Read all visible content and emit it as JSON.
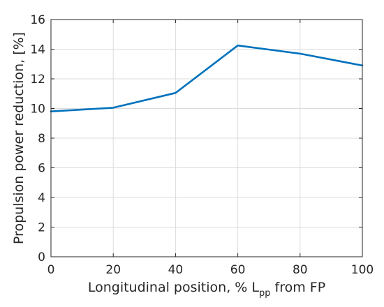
{
  "chart_data": {
    "type": "line",
    "xlabel_parts": {
      "before": "Longitudinal position, % L",
      "subscript": "pp",
      "after": " from FP"
    },
    "ylabel": "Propulsion power reduction, [%]",
    "xlim": [
      0,
      100
    ],
    "ylim": [
      0,
      16
    ],
    "xticks": [
      0,
      20,
      40,
      60,
      80,
      100
    ],
    "yticks": [
      0,
      2,
      4,
      6,
      8,
      10,
      12,
      14,
      16
    ],
    "grid": true,
    "series": [
      {
        "color": "#0072BD",
        "x": [
          0,
          20,
          40,
          60,
          80,
          100
        ],
        "y": [
          9.8,
          10.05,
          11.05,
          14.25,
          13.7,
          12.9
        ]
      }
    ]
  }
}
